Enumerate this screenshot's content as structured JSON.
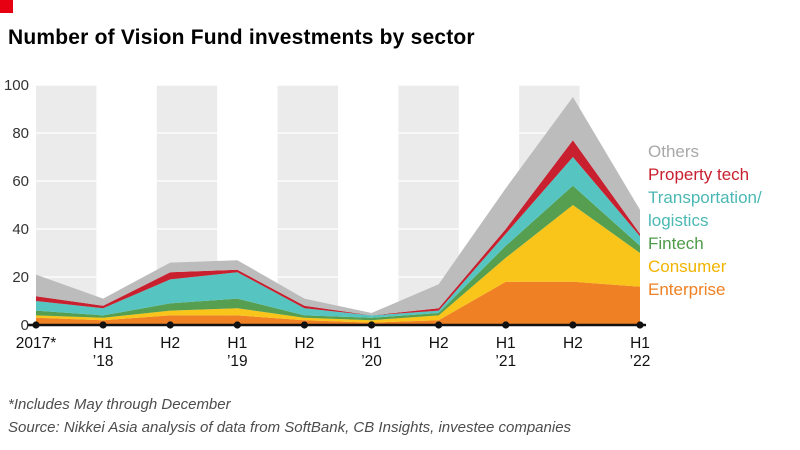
{
  "brand": {
    "square_color": "#e60012"
  },
  "title": "Number of Vision Fund investments by sector",
  "footnote": "*Includes May through December",
  "source": "Source: Nikkei Asia analysis of data from SoftBank, CB Insights, investee companies",
  "legend": {
    "items": [
      {
        "id": "others",
        "label": "Others",
        "color": "#a8a8a8"
      },
      {
        "id": "property-tech",
        "label": "Property tech",
        "color": "#c8202f"
      },
      {
        "id": "transportation-logistics",
        "label": "Transportation/\nlogistics",
        "color": "#4bb8b3"
      },
      {
        "id": "fintech",
        "label": "Fintech",
        "color": "#4e9b4a"
      },
      {
        "id": "consumer",
        "label": "Consumer",
        "color": "#f0b400"
      },
      {
        "id": "enterprise",
        "label": "Enterprise",
        "color": "#ef8023"
      }
    ]
  },
  "chart_data": {
    "type": "area",
    "stacked": true,
    "title": "Number of Vision Fund investments by sector",
    "categories": [
      "2017*",
      "H1 ’18",
      "H2 ’18",
      "H1 ’19",
      "H2 ’19",
      "H1 ’20",
      "H2 ’20",
      "H1 ’21",
      "H2 ’21",
      "H1 ’22"
    ],
    "x_tick_labels": [
      [
        "2017*",
        ""
      ],
      [
        "H1",
        "’18"
      ],
      [
        "H2",
        ""
      ],
      [
        "H1",
        "’19"
      ],
      [
        "H2",
        ""
      ],
      [
        "H1",
        "’20"
      ],
      [
        "H2",
        ""
      ],
      [
        "H1",
        "’21"
      ],
      [
        "H2",
        ""
      ],
      [
        "H1",
        "’22"
      ]
    ],
    "series": [
      {
        "name": "Enterprise",
        "color": "#ef8023",
        "values": [
          3,
          2,
          4,
          4,
          2,
          1,
          2,
          18,
          18,
          16
        ]
      },
      {
        "name": "Consumer",
        "color": "#f9c51a",
        "values": [
          1,
          1,
          2,
          3,
          1,
          1,
          2,
          10,
          32,
          14
        ]
      },
      {
        "name": "Fintech",
        "color": "#569e50",
        "values": [
          2,
          1,
          3,
          4,
          1,
          1,
          1,
          5,
          8,
          3
        ]
      },
      {
        "name": "Transportation/logistics",
        "color": "#56c4c0",
        "values": [
          4,
          3,
          10,
          11,
          3,
          1,
          1,
          5,
          12,
          4
        ]
      },
      {
        "name": "Property tech",
        "color": "#c8202f",
        "values": [
          2,
          1,
          3,
          1,
          1,
          0,
          1,
          2,
          7,
          1
        ]
      },
      {
        "name": "Others",
        "color": "#bcbcbc",
        "values": [
          9,
          3,
          4,
          4,
          3,
          1,
          10,
          17,
          18,
          10
        ]
      }
    ],
    "xlabel": "",
    "ylabel": "",
    "ylim": [
      0,
      100
    ],
    "yticks": [
      0,
      20,
      40,
      60,
      80,
      100
    ],
    "band_color": "#ebebeb",
    "grid": "horizontal-white-over-bands",
    "legend_position": "right"
  }
}
